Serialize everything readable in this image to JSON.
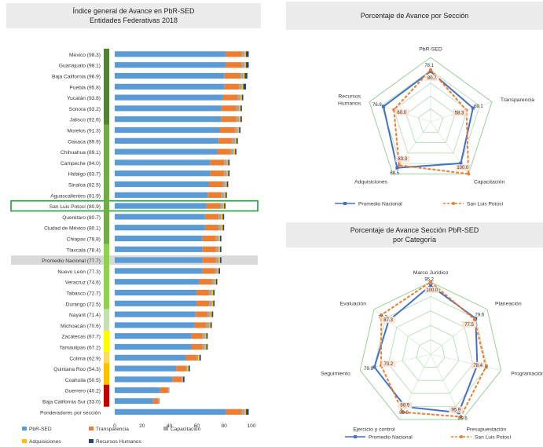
{
  "chart_data": [
    {
      "type": "bar",
      "title": "Índice general de Avance en PbR-SED",
      "subtitle": "Entidades Federativas 2018",
      "stacked": true,
      "orientation": "horizontal",
      "categories": [
        "México (98.3)",
        "Guanajuato (98.1)",
        "Baja California (96.9)",
        "Puebla (95.8)",
        "Yucatán (93.8)",
        "Sonora (93.2)",
        "Jalisco (92.6)",
        "Morelos (91.3)",
        "Oaxaca (89.9)",
        "Chihuahua (89.1)",
        "Campeche (84.0)",
        "Hidalgo (83.7)",
        "Sinaloa (82.5)",
        "Aguascalientes (81.9)",
        "San Luis Potosí (80.9)",
        "Querétaro (80.7)",
        "Ciudad de México (80.1)",
        "Chiapas (78.8)",
        "Tlaxcala (78.4)",
        "Promedio Nacional (77.7)",
        "Nuevo León (77.3)",
        "Veracruz (74.6)",
        "Tabasco (72.7)",
        "Durango (72.5)",
        "Nayarit (71.4)",
        "Michoacán (70.6)",
        "Zacatecas (67.7)",
        "Tamaulipas (67.2)",
        "Colima (62.9)",
        "Quintana Roo (54.3)",
        "Coahuila (50.5)",
        "Guerrero (40.2)",
        "Baja California Sur (33.0)",
        "Ponderadores por sección"
      ],
      "highlighted": [
        "San Luis Potosí (80.9)",
        "Promedio Nacional (77.7)"
      ],
      "series": [
        {
          "name": "PbR-SED",
          "color": "#5b9bd5",
          "values": [
            81,
            81,
            80,
            80,
            79,
            78,
            78,
            77,
            76,
            75,
            70,
            70,
            69,
            68,
            67,
            66,
            66,
            64,
            64,
            64,
            64,
            62,
            60,
            60,
            59,
            58,
            56,
            56,
            52,
            45,
            42,
            33,
            28,
            81
          ]
        },
        {
          "name": "Transparencia",
          "color": "#ed7d31",
          "values": [
            12,
            12,
            12,
            11,
            11,
            11,
            11,
            11,
            10,
            10,
            10,
            10,
            10,
            10,
            10,
            10,
            10,
            10,
            10,
            10,
            9,
            9,
            9,
            9,
            9,
            9,
            8,
            8,
            8,
            7,
            7,
            6,
            4,
            12
          ]
        },
        {
          "name": "Capacitación",
          "color": "#a5a5a5",
          "values": [
            2,
            2,
            2,
            2,
            2,
            2,
            2,
            2,
            2,
            2,
            2,
            2,
            2,
            2,
            2,
            2,
            2,
            2,
            2,
            2,
            2,
            2,
            2,
            2,
            2,
            2,
            2,
            2,
            1,
            1,
            1,
            1,
            1,
            2
          ]
        },
        {
          "name": "Adquisiciones",
          "color": "#ffc000",
          "values": [
            1,
            1,
            1,
            1,
            1,
            1,
            1,
            1,
            1,
            1,
            1,
            1,
            1,
            1,
            1,
            1,
            1,
            1,
            1,
            1,
            1,
            1,
            1,
            1,
            1,
            1,
            1,
            1,
            1,
            1,
            0,
            0,
            0,
            1
          ]
        },
        {
          "name": "Recursos Humanos",
          "color": "#264478",
          "values": [
            2,
            2,
            2,
            2,
            1,
            1,
            1,
            1,
            1,
            1,
            1,
            1,
            1,
            1,
            1,
            1,
            1,
            1,
            1,
            1,
            1,
            1,
            1,
            1,
            1,
            1,
            1,
            1,
            1,
            1,
            1,
            0,
            0,
            2
          ]
        }
      ],
      "xlim": [
        0,
        100
      ],
      "xticks": [
        "0",
        "20",
        "40",
        "60",
        "80",
        "100"
      ],
      "legend_position": "bottom",
      "grid": false,
      "sidebar_scale": {
        "colors": [
          "#548235",
          "#548235",
          "#548235",
          "#548235",
          "#548235",
          "#548235",
          "#548235",
          "#70ad47",
          "#70ad47",
          "#70ad47",
          "#70ad47",
          "#70ad47",
          "#70ad47",
          "#70ad47",
          "#70ad47",
          "#70ad47",
          "#70ad47",
          "#70ad47",
          "#92d050",
          "#92d050",
          "#92d050",
          "#92d050",
          "#92d050",
          "#92d050",
          "#c5e0b4",
          "#c5e0b4",
          "#ffff00",
          "#ffff00",
          "#ffd966",
          "#ffc000",
          "#ffc000",
          "#c00000",
          "#c00000"
        ]
      }
    },
    {
      "type": "radar",
      "title": "Porcentaje de Avance por Sección",
      "axes": [
        "PbR-SED",
        "Transparencia",
        "Capacitación",
        "Adquisiciones",
        "Recursos Humanos"
      ],
      "axis_labels": [
        "PbR-SED",
        "Transparencia",
        "Capacitación",
        "Adquisiciones",
        "Recursos\nHumanos"
      ],
      "rlim": [
        0,
        100
      ],
      "rings": 5,
      "series": [
        {
          "name": "Promedio Nacional",
          "color": "#4472c4",
          "values": [
            78.1,
            69.1,
            79.7,
            88.5,
            76.9
          ],
          "labels": [
            "78.1",
            "69.1",
            "79.7",
            "88.5",
            "76.9"
          ]
        },
        {
          "name": "San Luis Potosí",
          "color": "#ed7d31",
          "values": [
            80.7,
            58.3,
            100.0,
            83.3,
            60.0
          ],
          "labels": [
            "80.7",
            "58.3",
            "100.0",
            "83.3",
            "60.0"
          ]
        }
      ],
      "legend_position": "bottom"
    },
    {
      "type": "radar",
      "title": "Porcentaje de Avance Sección PbR-SED",
      "subtitle": "por Categoría",
      "axes": [
        "Marco Jurídico",
        "Planeación",
        "Programación",
        "Presupuestación",
        "Ejercicio y control",
        "Seguimiento",
        "Evaluación"
      ],
      "axis_labels": [
        "Marco Jurídico",
        "Planeación",
        "Programación",
        "Presupuestación",
        "Ejercicio  y control",
        "Seguimiento",
        "Evaluación"
      ],
      "rlim": [
        0,
        100
      ],
      "rings": 5,
      "series": [
        {
          "name": "Promedio Nacional",
          "color": "#4472c4",
          "values": [
            95.2,
            79.6,
            66.2,
            89.6,
            80.6,
            79.8,
            74.3
          ],
          "labels": [
            "95.2",
            "79.6",
            "66.2",
            "89.6",
            "80.6",
            "79.8",
            "74.3"
          ]
        },
        {
          "name": "San Luis Potosí",
          "color": "#ed7d31",
          "values": [
            100.0,
            77.5,
            78.4,
            95.9,
            88.9,
            70.2,
            87.3
          ],
          "labels": [
            "100.0",
            "77.5",
            "78.4",
            "95.9",
            "88.9",
            "70.2",
            "87.3"
          ]
        }
      ],
      "legend_position": "bottom"
    }
  ]
}
